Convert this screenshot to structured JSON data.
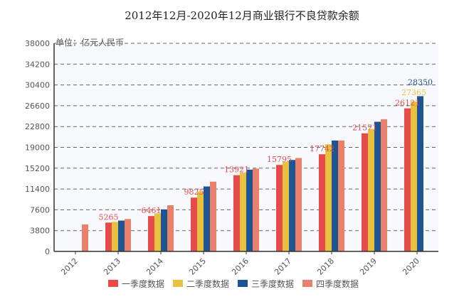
{
  "chart_data": {
    "type": "bar",
    "title": "2012年12月-2020年12月商业银行不良贷款余额",
    "unit_label": "单位：亿元人民币",
    "categories": [
      "2012",
      "2013",
      "2014",
      "2015",
      "2016",
      "2017",
      "2018",
      "2019",
      "2020"
    ],
    "ylim": [
      0,
      38000
    ],
    "yticks": [
      "0",
      "3800",
      "7600",
      "11400",
      "15200",
      "19000",
      "22800",
      "26600",
      "30400",
      "34200",
      "38000"
    ],
    "grid": true,
    "legend_position": "bottom",
    "series": [
      {
        "name": "一季度数据",
        "color": "#e84a4a",
        "values": [
          null,
          5265,
          6461,
          9825,
          13921,
          15795,
          17742,
          21571,
          26121
        ],
        "labels": [
          null,
          "5265",
          "6461",
          "9825",
          "13921",
          "15795",
          "17742",
          "21571",
          "26121"
        ]
      },
      {
        "name": "二季度数据",
        "color": "#e6c23e",
        "values": [
          null,
          5395,
          6944,
          10919,
          14373,
          16358,
          19571,
          22352,
          27365
        ],
        "labels": [
          null,
          null,
          null,
          null,
          null,
          null,
          null,
          null,
          "27365"
        ]
      },
      {
        "name": "三季度数据",
        "color": "#1d5493",
        "values": [
          null,
          5636,
          7669,
          11863,
          14939,
          16704,
          20254,
          23672,
          28350
        ],
        "labels": [
          null,
          null,
          null,
          null,
          null,
          null,
          null,
          null,
          "28350"
        ]
      },
      {
        "name": "四季度数据",
        "color": "#e8806a",
        "values": [
          4929,
          5921,
          8426,
          12744,
          15123,
          17057,
          20254,
          24135,
          null
        ],
        "labels": [
          null,
          null,
          null,
          null,
          null,
          null,
          null,
          null,
          null
        ]
      }
    ]
  }
}
